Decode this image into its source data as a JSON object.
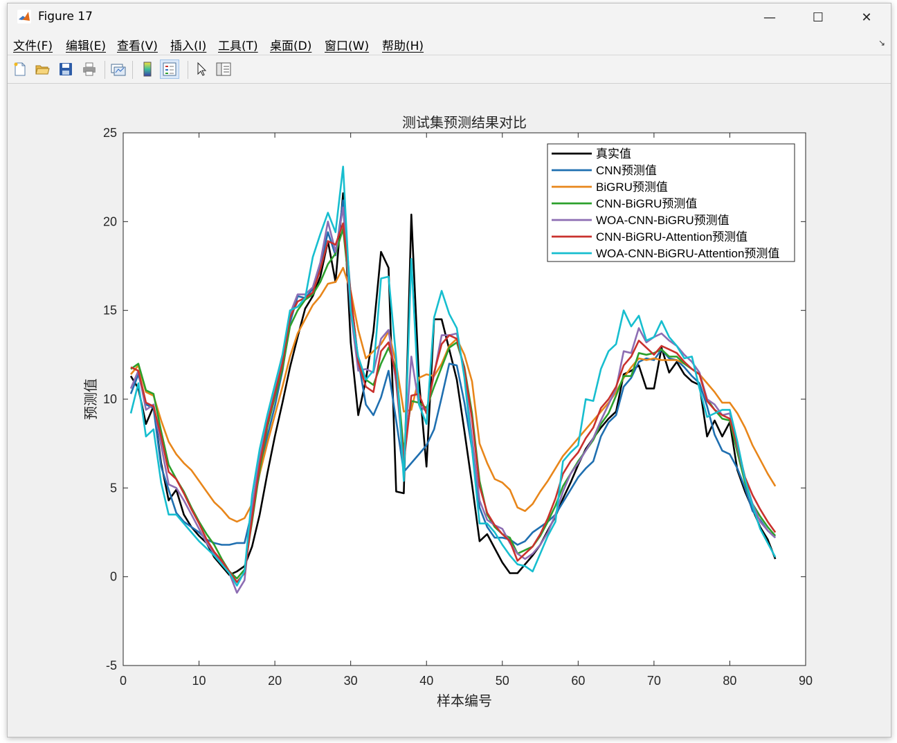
{
  "window": {
    "title": "Figure 17",
    "minimize": "—",
    "maximize": "☐",
    "close": "✕"
  },
  "menu": [
    "文件(F)",
    "编辑(E)",
    "查看(V)",
    "插入(I)",
    "工具(T)",
    "桌面(D)",
    "窗口(W)",
    "帮助(H)"
  ],
  "toolbar": [
    "new-figure-icon",
    "open-file-icon",
    "save-icon",
    "print-icon",
    "link-plot-icon",
    "colorbar-icon",
    "legend-icon",
    "pointer-icon",
    "property-editor-icon"
  ],
  "chart_data": {
    "type": "line",
    "title": "测试集预测结果对比",
    "xlabel": "样本编号",
    "ylabel": "预测值",
    "xlim": [
      0,
      90
    ],
    "ylim": [
      -5,
      25
    ],
    "xticks": [
      0,
      10,
      20,
      30,
      40,
      50,
      60,
      70,
      80,
      90
    ],
    "yticks": [
      -5,
      0,
      5,
      10,
      15,
      20,
      25
    ],
    "legend_position": "top-right",
    "grid": false,
    "x": [
      1,
      2,
      3,
      4,
      5,
      6,
      7,
      8,
      9,
      10,
      11,
      12,
      13,
      14,
      15,
      16,
      17,
      18,
      19,
      20,
      21,
      22,
      23,
      24,
      25,
      26,
      27,
      28,
      29,
      30,
      31,
      32,
      33,
      34,
      35,
      36,
      37,
      38,
      39,
      40,
      41,
      42,
      43,
      44,
      45,
      46,
      47,
      48,
      49,
      50,
      51,
      52,
      53,
      54,
      55,
      56,
      57,
      58,
      59,
      60,
      61,
      62,
      63,
      64,
      65,
      66,
      67,
      68,
      69,
      70,
      71,
      72,
      73,
      74,
      75,
      76,
      77,
      78,
      79,
      80,
      81,
      82,
      83,
      84,
      85,
      86
    ],
    "series": [
      {
        "name": "真实值",
        "color": "#000000",
        "values": [
          11.3,
          10.6,
          8.6,
          9.6,
          6.4,
          4.3,
          4.9,
          3.5,
          2.8,
          2.3,
          1.9,
          1.1,
          0.6,
          0.1,
          0.3,
          0.6,
          1.7,
          3.5,
          5.8,
          7.9,
          9.8,
          11.8,
          13.5,
          15.1,
          15.8,
          16.9,
          18.9,
          16.6,
          21.6,
          13.2,
          9.1,
          11.1,
          13.8,
          18.3,
          17.4,
          4.8,
          4.7,
          20.4,
          11.1,
          6.2,
          14.5,
          14.5,
          12.8,
          11.1,
          8.2,
          5.2,
          2.0,
          2.4,
          1.6,
          0.8,
          0.2,
          0.2,
          0.7,
          1.2,
          1.8,
          2.6,
          3.4,
          4.4,
          5.3,
          6.3,
          7.2,
          7.8,
          8.4,
          8.9,
          9.3,
          11.4,
          11.6,
          11.9,
          10.6,
          10.6,
          12.9,
          11.5,
          12.1,
          11.4,
          11.0,
          10.8,
          7.9,
          8.8,
          7.9,
          8.7,
          6.0,
          4.8,
          3.8,
          2.8,
          2.1,
          1.0
        ]
      },
      {
        "name": "CNN预测值",
        "color": "#1f6fb0",
        "values": [
          10.3,
          11.4,
          9.7,
          9.5,
          6.2,
          4.9,
          3.6,
          3.1,
          2.8,
          2.5,
          2.1,
          1.9,
          1.8,
          1.8,
          1.9,
          1.9,
          3.7,
          5.8,
          7.9,
          9.6,
          11.6,
          14.3,
          15.8,
          15.7,
          16.2,
          17.5,
          19.4,
          18.1,
          21.2,
          15.9,
          12.2,
          9.7,
          9.1,
          10.1,
          11.6,
          8.8,
          5.9,
          6.4,
          6.9,
          7.4,
          8.3,
          10.1,
          12.0,
          11.9,
          9.8,
          7.2,
          3.9,
          2.8,
          2.2,
          2.2,
          2.1,
          1.8,
          2.0,
          2.5,
          2.8,
          3.1,
          3.5,
          4.2,
          4.9,
          5.6,
          6.1,
          6.5,
          7.9,
          8.7,
          9.1,
          10.7,
          11.2,
          12.1,
          12.3,
          12.2,
          12.8,
          12.3,
          12.2,
          11.8,
          11.3,
          10.9,
          9.6,
          8.0,
          7.1,
          6.9,
          6.1,
          5.0,
          3.7,
          3.2,
          2.6,
          2.2
        ]
      },
      {
        "name": "BiGRU预测值",
        "color": "#e8861a",
        "values": [
          11.4,
          11.9,
          10.4,
          10.2,
          8.8,
          7.6,
          6.9,
          6.4,
          6.0,
          5.4,
          4.8,
          4.2,
          3.8,
          3.3,
          3.1,
          3.3,
          4.1,
          5.8,
          7.5,
          9.1,
          10.7,
          12.4,
          13.7,
          14.5,
          15.3,
          15.8,
          16.5,
          16.6,
          17.4,
          16.1,
          13.9,
          12.3,
          12.7,
          13.1,
          13.8,
          12.0,
          9.3,
          9.4,
          11.2,
          11.4,
          11.3,
          12.0,
          13.0,
          13.4,
          12.5,
          11.0,
          7.5,
          6.4,
          5.5,
          5.3,
          4.9,
          3.9,
          3.7,
          4.1,
          4.8,
          5.4,
          6.1,
          6.8,
          7.3,
          7.8,
          8.3,
          8.8,
          9.3,
          9.8,
          10.4,
          11.2,
          11.8,
          12.3,
          12.2,
          12.3,
          12.2,
          12.2,
          12.2,
          12.0,
          11.7,
          11.4,
          10.9,
          10.4,
          9.8,
          9.8,
          9.2,
          8.4,
          7.4,
          6.6,
          5.8,
          5.1
        ]
      },
      {
        "name": "CNN-BiGRU预测值",
        "color": "#2ca02c",
        "values": [
          11.7,
          12.0,
          10.5,
          10.3,
          8.2,
          6.3,
          5.5,
          4.8,
          3.9,
          3.1,
          2.4,
          1.8,
          1.0,
          0.3,
          -0.1,
          0.4,
          3.1,
          6.0,
          8.4,
          10.1,
          11.7,
          14.1,
          15.0,
          15.6,
          15.9,
          16.6,
          17.6,
          18.2,
          19.6,
          15.5,
          12.1,
          11.1,
          10.8,
          12.0,
          12.9,
          11.7,
          7.1,
          9.9,
          9.8,
          9.5,
          10.7,
          11.8,
          12.9,
          13.2,
          11.8,
          9.2,
          5.4,
          3.5,
          2.8,
          2.4,
          2.2,
          1.3,
          1.5,
          1.7,
          2.3,
          3.1,
          4.0,
          5.1,
          5.8,
          6.5,
          7.1,
          7.7,
          8.6,
          9.2,
          10.2,
          11.3,
          11.3,
          12.6,
          12.5,
          12.6,
          12.8,
          12.4,
          12.4,
          12.0,
          11.7,
          11.4,
          10.0,
          9.4,
          8.9,
          8.8,
          7.0,
          5.3,
          4.1,
          3.4,
          2.8,
          2.3
        ]
      },
      {
        "name": "WOA-CNN-BiGRU预测值",
        "color": "#8d6db3",
        "values": [
          10.6,
          11.6,
          9.4,
          9.7,
          7.4,
          5.2,
          5.0,
          4.3,
          3.5,
          2.7,
          1.9,
          1.3,
          0.8,
          0.2,
          -0.9,
          -0.2,
          3.9,
          6.7,
          8.7,
          10.4,
          12.1,
          14.8,
          15.9,
          15.9,
          16.3,
          17.7,
          20.0,
          18.3,
          20.8,
          14.9,
          11.6,
          11.7,
          11.5,
          13.4,
          13.9,
          10.9,
          6.5,
          12.4,
          9.7,
          9.3,
          11.4,
          13.6,
          13.6,
          13.7,
          11.4,
          7.8,
          4.3,
          3.2,
          2.9,
          2.7,
          1.9,
          1.3,
          1.0,
          1.3,
          1.8,
          2.5,
          3.5,
          4.8,
          5.8,
          6.4,
          7.1,
          7.8,
          8.8,
          9.7,
          10.6,
          12.7,
          12.6,
          14.0,
          13.2,
          13.5,
          13.7,
          13.3,
          13.0,
          12.5,
          12.1,
          11.5,
          10.0,
          9.7,
          9.1,
          9.2,
          7.3,
          5.5,
          4.1,
          3.1,
          2.6,
          2.2
        ]
      },
      {
        "name": "CNN-BiGRU-Attention预测值",
        "color": "#c9312d",
        "values": [
          11.8,
          11.6,
          9.8,
          9.6,
          7.9,
          5.9,
          5.5,
          4.7,
          3.8,
          3.0,
          2.1,
          1.4,
          0.9,
          0.3,
          -0.3,
          0.2,
          3.3,
          6.3,
          8.6,
          10.3,
          12.0,
          14.6,
          15.5,
          15.7,
          16.0,
          17.3,
          18.9,
          18.7,
          19.9,
          16.0,
          12.1,
          10.7,
          10.4,
          12.7,
          13.2,
          11.3,
          6.4,
          10.2,
          10.3,
          9.2,
          11.5,
          13.1,
          13.6,
          13.4,
          11.7,
          8.9,
          5.1,
          3.6,
          2.9,
          2.4,
          2.0,
          0.9,
          1.3,
          1.7,
          2.4,
          3.3,
          4.4,
          5.8,
          6.5,
          7.0,
          7.8,
          8.4,
          9.5,
          10.0,
          10.7,
          11.9,
          12.4,
          13.3,
          12.9,
          12.5,
          13.0,
          12.8,
          12.6,
          12.1,
          11.7,
          11.4,
          9.9,
          9.4,
          9.1,
          8.9,
          7.4,
          5.6,
          4.6,
          3.8,
          3.1,
          2.5
        ]
      },
      {
        "name": "WOA-CNN-BiGRU-Attention预测值",
        "color": "#17becf",
        "values": [
          9.2,
          10.9,
          7.9,
          8.3,
          5.3,
          3.5,
          3.5,
          3.0,
          2.5,
          2.0,
          1.6,
          1.2,
          0.7,
          0.2,
          -0.5,
          0.3,
          4.6,
          7.2,
          9.1,
          10.8,
          12.5,
          15.0,
          15.2,
          15.7,
          18.0,
          19.3,
          20.5,
          19.4,
          23.1,
          15.0,
          12.4,
          11.1,
          11.6,
          16.8,
          16.9,
          12.3,
          5.4,
          17.9,
          9.7,
          8.6,
          14.6,
          16.1,
          14.8,
          14.0,
          11.2,
          7.2,
          3.0,
          3.0,
          2.5,
          1.8,
          1.2,
          0.7,
          0.6,
          0.3,
          1.3,
          2.3,
          3.1,
          6.5,
          7.0,
          7.4,
          10.0,
          9.9,
          11.7,
          12.7,
          13.1,
          15.0,
          14.1,
          14.7,
          13.3,
          13.5,
          14.4,
          13.5,
          13.0,
          12.3,
          12.4,
          10.6,
          9.0,
          9.2,
          9.4,
          9.4,
          7.6,
          5.5,
          4.0,
          2.7,
          1.9,
          1.1
        ]
      }
    ]
  }
}
